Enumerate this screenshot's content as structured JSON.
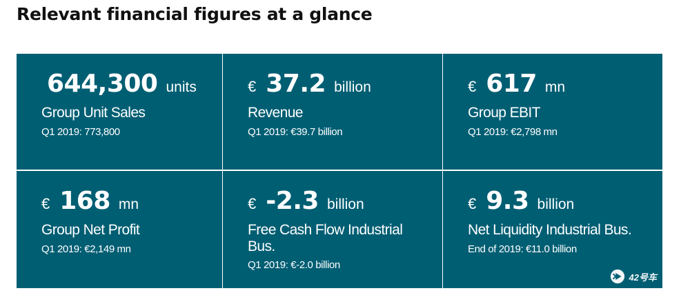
{
  "page": {
    "title": "Relevant financial figures at a glance"
  },
  "tiles": [
    {
      "currency": "",
      "value": "644,300",
      "unit": "units",
      "label": "Group Unit Sales",
      "comparison": "Q1 2019: 773,800"
    },
    {
      "currency": "€",
      "value": "37.2",
      "unit": "billion",
      "label": "Revenue",
      "comparison": "Q1 2019: €39.7 billion"
    },
    {
      "currency": "€",
      "value": "617",
      "unit": "mn",
      "label": "Group EBIT",
      "comparison": "Q1 2019: €2,798 mn"
    },
    {
      "currency": "€",
      "value": "168",
      "unit": "mn",
      "label": "Group Net Profit",
      "comparison": "Q1 2019: €2,149 mn"
    },
    {
      "currency": "€",
      "value": "-2.3",
      "unit": "billion",
      "label": "Free Cash Flow Industrial Bus.",
      "comparison": "Q1 2019: €-2.0 billion"
    },
    {
      "currency": "€",
      "value": "9.3",
      "unit": "billion",
      "label": "Net Liquidity Industrial Bus.",
      "comparison": "End of 2019: €11.0 billion"
    }
  ],
  "watermark": {
    "text": "42号车",
    "icon": "play-logo-icon"
  }
}
